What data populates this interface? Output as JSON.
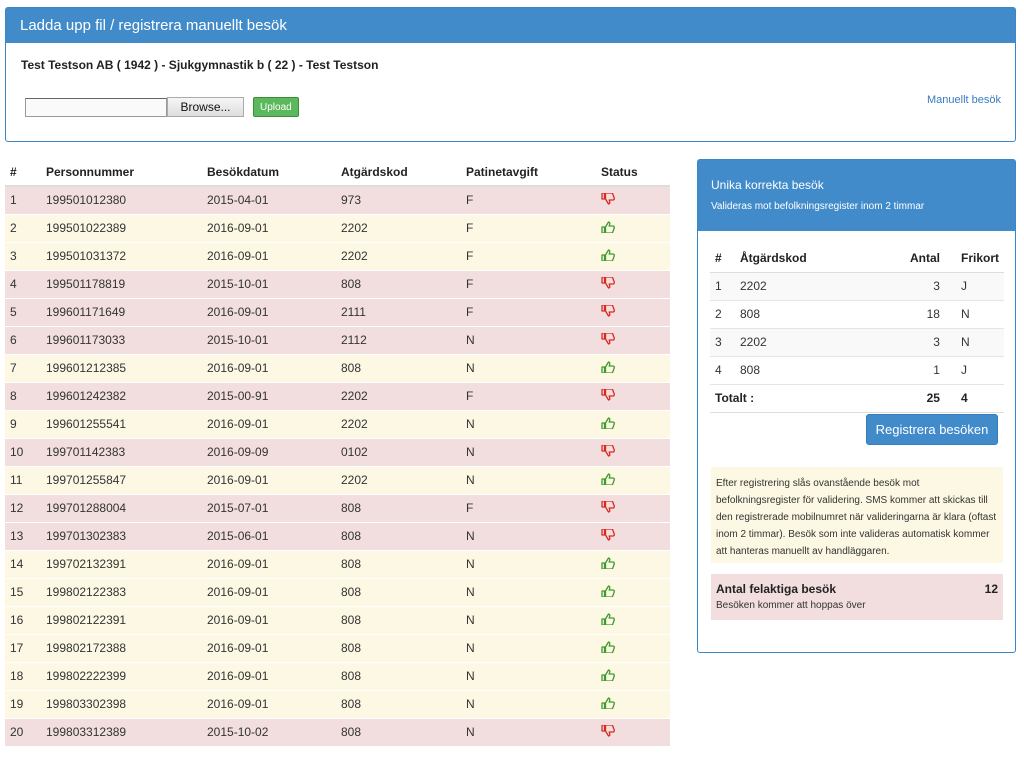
{
  "upload_panel": {
    "title": "Ladda upp fil / registrera manuellt besök",
    "subtitle": "Test Testson AB ( 1942 ) - Sjukgymnastik b ( 22 ) - Test Testson",
    "browse_label": "Browse...",
    "upload_label": "Upload",
    "manual_link": "Manuellt besök"
  },
  "visits_table": {
    "headers": [
      "#",
      "Personnummer",
      "Besökdatum",
      "Atgärdskod",
      "Patinetavgift",
      "Status"
    ],
    "rows": [
      {
        "n": "1",
        "pnr": "199501012380",
        "date": "2015-04-01",
        "code": "973",
        "fee": "F",
        "status": "bad"
      },
      {
        "n": "2",
        "pnr": "199501022389",
        "date": "2016-09-01",
        "code": "2202",
        "fee": "F",
        "status": "good"
      },
      {
        "n": "3",
        "pnr": "199501031372",
        "date": "2016-09-01",
        "code": "2202",
        "fee": "F",
        "status": "good"
      },
      {
        "n": "4",
        "pnr": "199501178819",
        "date": "2015-10-01",
        "code": "808",
        "fee": "F",
        "status": "bad"
      },
      {
        "n": "5",
        "pnr": "199601171649",
        "date": "2016-09-01",
        "code": "2111",
        "fee": "F",
        "status": "bad"
      },
      {
        "n": "6",
        "pnr": "199601173033",
        "date": "2015-10-01",
        "code": "2112",
        "fee": "N",
        "status": "bad"
      },
      {
        "n": "7",
        "pnr": "199601212385",
        "date": "2016-09-01",
        "code": "808",
        "fee": "N",
        "status": "good"
      },
      {
        "n": "8",
        "pnr": "199601242382",
        "date": "2015-00-91",
        "code": "2202",
        "fee": "F",
        "status": "bad"
      },
      {
        "n": "9",
        "pnr": "199601255541",
        "date": "2016-09-01",
        "code": "2202",
        "fee": "N",
        "status": "good"
      },
      {
        "n": "10",
        "pnr": "199701142383",
        "date": "2016-09-09",
        "code": "0102",
        "fee": "N",
        "status": "bad"
      },
      {
        "n": "11",
        "pnr": "199701255847",
        "date": "2016-09-01",
        "code": "2202",
        "fee": "N",
        "status": "good"
      },
      {
        "n": "12",
        "pnr": "199701288004",
        "date": "2015-07-01",
        "code": "808",
        "fee": "F",
        "status": "bad"
      },
      {
        "n": "13",
        "pnr": "199701302383",
        "date": "2015-06-01",
        "code": "808",
        "fee": "N",
        "status": "bad"
      },
      {
        "n": "14",
        "pnr": "199702132391",
        "date": "2016-09-01",
        "code": "808",
        "fee": "N",
        "status": "good"
      },
      {
        "n": "15",
        "pnr": "199802122383",
        "date": "2016-09-01",
        "code": "808",
        "fee": "N",
        "status": "good"
      },
      {
        "n": "16",
        "pnr": "199802122391",
        "date": "2016-09-01",
        "code": "808",
        "fee": "N",
        "status": "good"
      },
      {
        "n": "17",
        "pnr": "199802172388",
        "date": "2016-09-01",
        "code": "808",
        "fee": "N",
        "status": "good"
      },
      {
        "n": "18",
        "pnr": "199802222399",
        "date": "2016-09-01",
        "code": "808",
        "fee": "N",
        "status": "good"
      },
      {
        "n": "19",
        "pnr": "199803302398",
        "date": "2016-09-01",
        "code": "808",
        "fee": "N",
        "status": "good"
      },
      {
        "n": "20",
        "pnr": "199803312389",
        "date": "2015-10-02",
        "code": "808",
        "fee": "N",
        "status": "bad"
      }
    ]
  },
  "summary_panel": {
    "title": "Unika korrekta besök",
    "subtitle": "Valideras mot befolkningsregister inom 2 timmar",
    "headers": [
      "#",
      "Åtgärdskod",
      "Antal",
      "Frikort"
    ],
    "rows": [
      {
        "n": "1",
        "code": "2202",
        "count": "3",
        "free": "J"
      },
      {
        "n": "2",
        "code": "808",
        "count": "18",
        "free": "N"
      },
      {
        "n": "3",
        "code": "2202",
        "count": "3",
        "free": "N"
      },
      {
        "n": "4",
        "code": "808",
        "count": "1",
        "free": "J"
      }
    ],
    "total_label": "Totalt :",
    "total_count": "25",
    "total_free": "4",
    "register_label": "Registrera besöken",
    "info_text": "Efter registrering slås ovanstående besök mot befolkningsregister för validering. SMS kommer att skickas till den registrerade mobilnumret när valideringarna är klara (oftast inom 2 timmar). Besök som inte valideras automatisk kommer att hanteras manuellt av handläggaren.",
    "error_title": "Antal felaktiga besök",
    "error_count": "12",
    "error_sub": "Besöken kommer att hoppas över"
  },
  "colors": {
    "good_icon": "#3c9a2f",
    "bad_icon": "#d9281e",
    "accent": "#428bca"
  }
}
